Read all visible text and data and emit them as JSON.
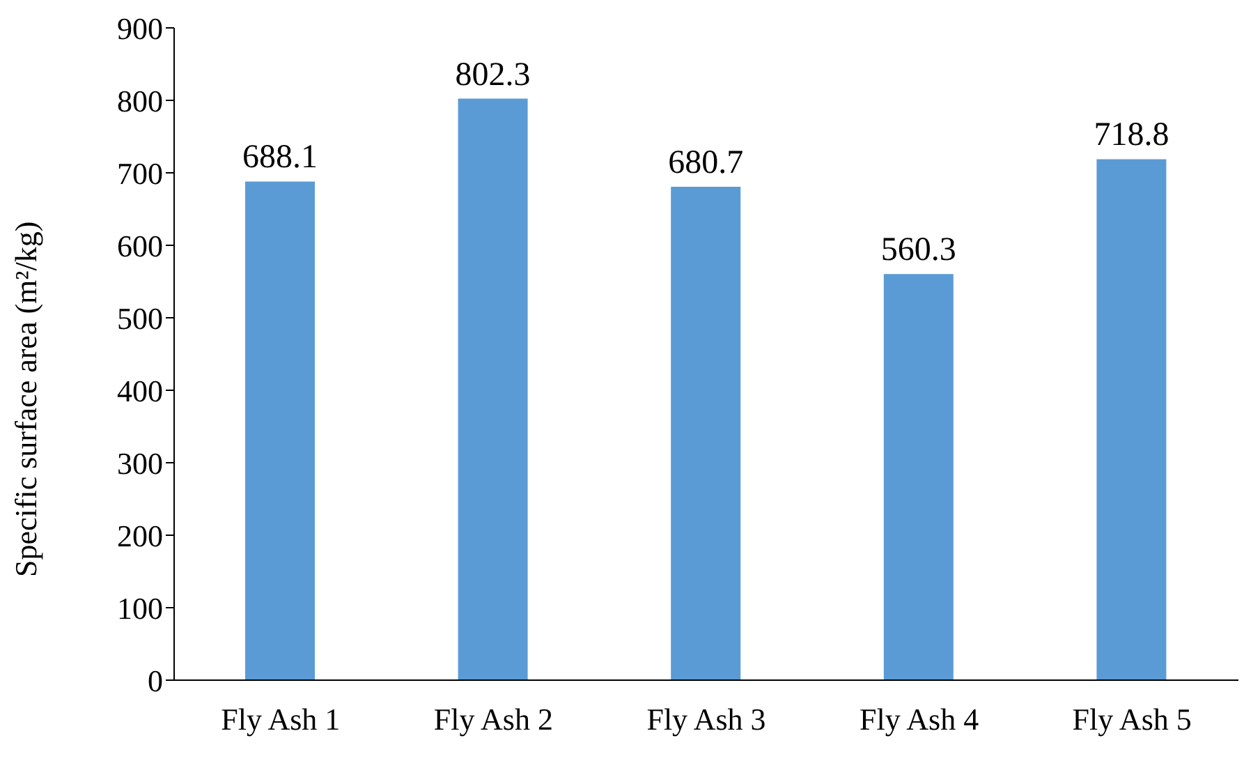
{
  "chart_data": {
    "type": "bar",
    "ylabel": "Specific surface area (m²/kg)",
    "categories": [
      "Fly Ash 1",
      "Fly Ash 2",
      "Fly Ash 3",
      "Fly Ash 4",
      "Fly Ash 5"
    ],
    "values": [
      688.1,
      802.3,
      680.7,
      560.3,
      718.8
    ],
    "color": "#5b9bd5",
    "ylim": [
      0,
      900
    ],
    "yticks": [
      0,
      100,
      200,
      300,
      400,
      500,
      600,
      700,
      800,
      900
    ],
    "grid": false,
    "data_labels": true
  }
}
